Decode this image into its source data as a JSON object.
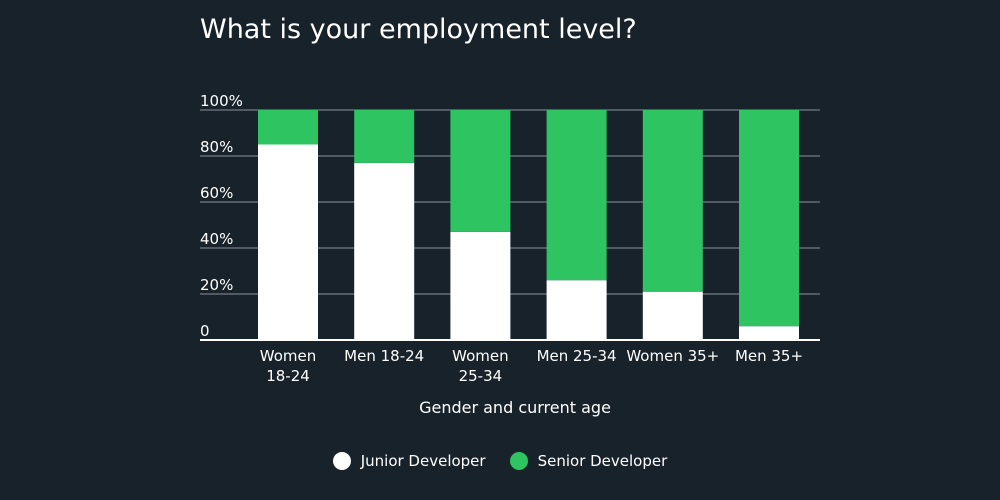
{
  "title": "What is your employment level?",
  "colors": {
    "background": "#18222b",
    "junior": "#ffffff",
    "senior": "#2ec462",
    "gridline": "#8a939b",
    "text": "#ffffff"
  },
  "chart_data": {
    "type": "bar",
    "stacked": true,
    "title": "What is your employment level?",
    "xlabel": "Gender and current age",
    "ylabel": "",
    "ylim": [
      0,
      100
    ],
    "yticks": [
      {
        "value": 0,
        "label": "0"
      },
      {
        "value": 20,
        "label": "20%"
      },
      {
        "value": 40,
        "label": "40%"
      },
      {
        "value": 60,
        "label": "60%"
      },
      {
        "value": 80,
        "label": "80%"
      },
      {
        "value": 100,
        "label": "100%"
      }
    ],
    "categories": [
      "Women 18-24",
      "Men 18-24",
      "Women 25-34",
      "Men 25-34",
      "Women 35+",
      "Men 35+"
    ],
    "category_lines": [
      [
        "Women",
        "18-24"
      ],
      [
        "Men 18-24"
      ],
      [
        "Women",
        "25-34"
      ],
      [
        "Men 25-34"
      ],
      [
        "Women 35+"
      ],
      [
        "Men 35+"
      ]
    ],
    "series": [
      {
        "name": "Junior Developer",
        "values": [
          85,
          77,
          47,
          26,
          21,
          6
        ]
      },
      {
        "name": "Senior Developer",
        "values": [
          15,
          23,
          53,
          74,
          79,
          94
        ]
      }
    ],
    "legend_position": "bottom-center"
  },
  "legend": {
    "items": [
      {
        "label": "Junior Developer",
        "color": "#ffffff"
      },
      {
        "label": "Senior Developer",
        "color": "#2ec462"
      }
    ]
  }
}
